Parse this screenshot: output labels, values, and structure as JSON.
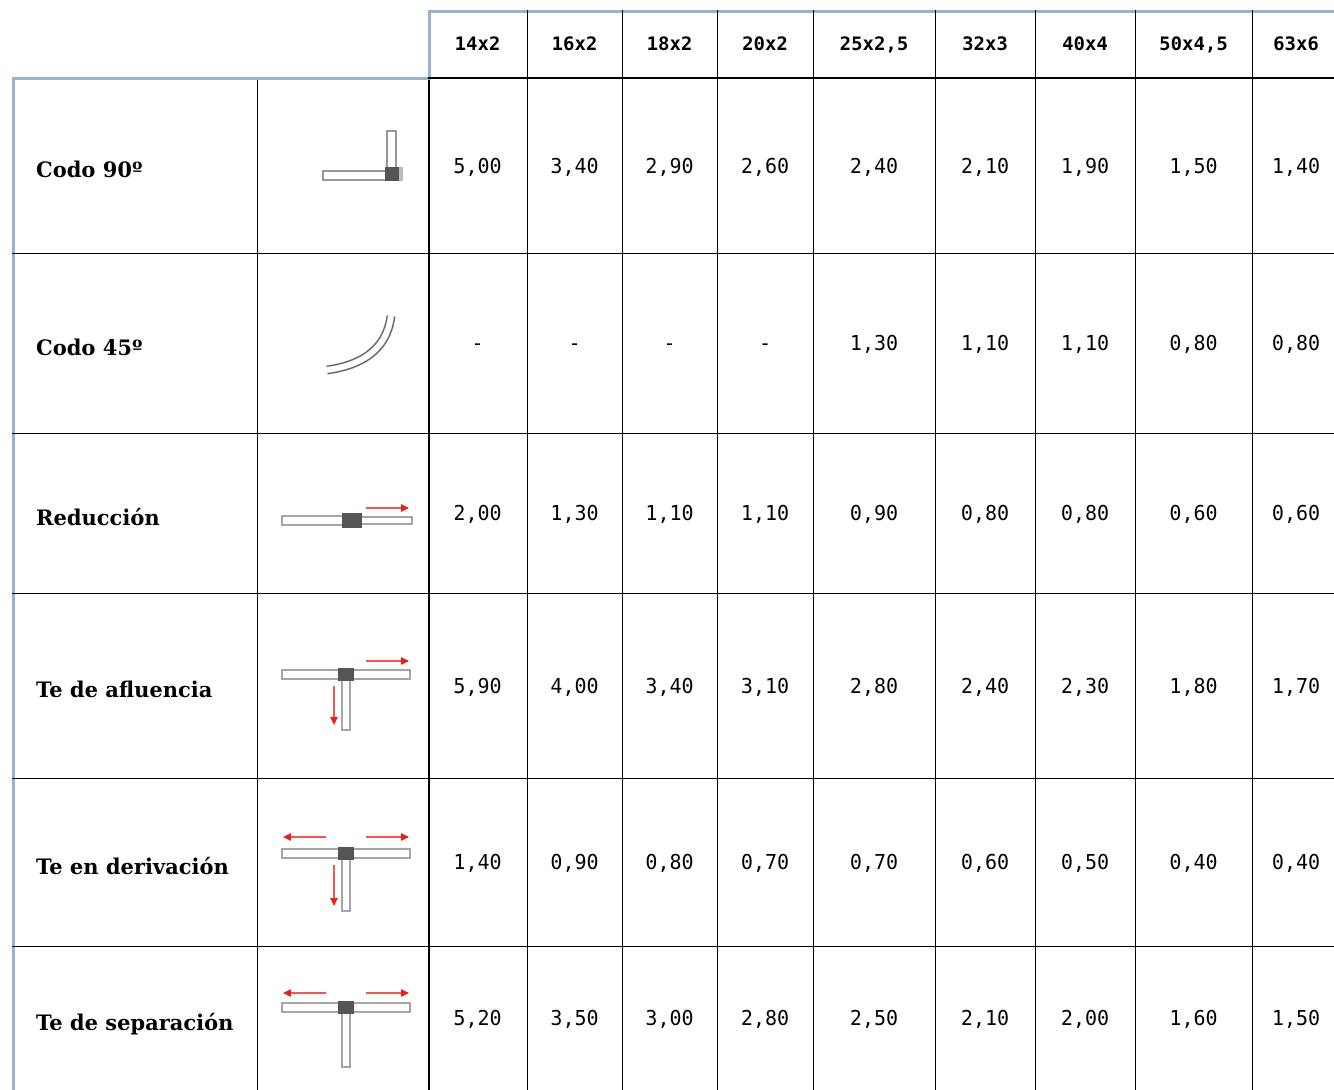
{
  "table": {
    "columns": [
      "14x2",
      "16x2",
      "18x2",
      "20x2",
      "25x2,5",
      "32x3",
      "40x4",
      "50x4,5",
      "63x6"
    ],
    "rows": [
      {
        "label": "Codo 90º",
        "icon": "elbow-90-icon",
        "values": [
          "5,00",
          "3,40",
          "2,90",
          "2,60",
          "2,40",
          "2,10",
          "1,90",
          "1,50",
          "1,40"
        ]
      },
      {
        "label": "Codo 45º",
        "icon": "elbow-45-icon",
        "values": [
          "-",
          "-",
          "-",
          "-",
          "1,30",
          "1,10",
          "1,10",
          "0,80",
          "0,80"
        ]
      },
      {
        "label": "Reducción",
        "icon": "reduction-icon",
        "values": [
          "2,00",
          "1,30",
          "1,10",
          "1,10",
          "0,90",
          "0,80",
          "0,80",
          "0,60",
          "0,60"
        ]
      },
      {
        "label": "Te de afluencia",
        "icon": "tee-confluence-icon",
        "values": [
          "5,90",
          "4,00",
          "3,40",
          "3,10",
          "2,80",
          "2,40",
          "2,30",
          "1,80",
          "1,70"
        ]
      },
      {
        "label": "Te en derivación",
        "icon": "tee-branch-icon",
        "values": [
          "1,40",
          "0,90",
          "0,80",
          "0,70",
          "0,70",
          "0,60",
          "0,50",
          "0,40",
          "0,40"
        ]
      },
      {
        "label": "Te de separación",
        "icon": "tee-separation-icon",
        "values": [
          "5,20",
          "3,50",
          "3,00",
          "2,80",
          "2,50",
          "2,10",
          "2,00",
          "1,60",
          "1,50"
        ]
      }
    ]
  },
  "colors": {
    "grid": "#000000",
    "accent_border": "#98b1cf",
    "arrow": "#e8201a"
  }
}
